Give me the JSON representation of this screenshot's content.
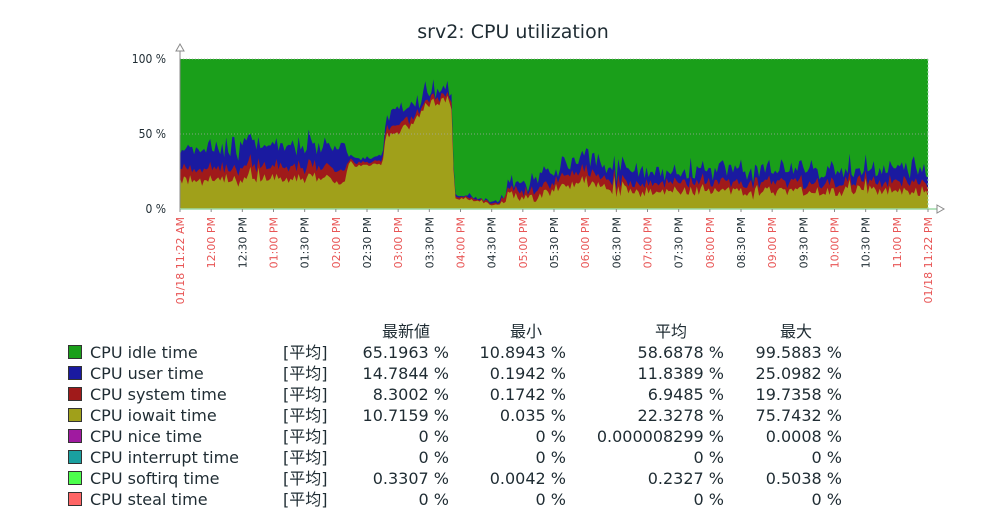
{
  "chart_data": {
    "type": "area",
    "title": "srv2: CPU utilization",
    "y_ticks": [
      "100 %",
      "50 %",
      "0 %"
    ],
    "ylim": [
      0,
      100
    ],
    "x_ticks": [
      {
        "label": "01/18 11:22 AM",
        "red": true
      },
      {
        "label": "12:00 PM",
        "red": true
      },
      {
        "label": "12:30 PM",
        "red": false
      },
      {
        "label": "01:00 PM",
        "red": true
      },
      {
        "label": "01:30 PM",
        "red": false
      },
      {
        "label": "02:00 PM",
        "red": true
      },
      {
        "label": "02:30 PM",
        "red": false
      },
      {
        "label": "03:00 PM",
        "red": true
      },
      {
        "label": "03:30 PM",
        "red": false
      },
      {
        "label": "04:00 PM",
        "red": true
      },
      {
        "label": "04:30 PM",
        "red": false
      },
      {
        "label": "05:00 PM",
        "red": true
      },
      {
        "label": "05:30 PM",
        "red": false
      },
      {
        "label": "06:00 PM",
        "red": true
      },
      {
        "label": "06:30 PM",
        "red": false
      },
      {
        "label": "07:00 PM",
        "red": true
      },
      {
        "label": "07:30 PM",
        "red": false
      },
      {
        "label": "08:00 PM",
        "red": true
      },
      {
        "label": "08:30 PM",
        "red": false
      },
      {
        "label": "09:00 PM",
        "red": true
      },
      {
        "label": "09:30 PM",
        "red": false
      },
      {
        "label": "10:00 PM",
        "red": true
      },
      {
        "label": "10:30 PM",
        "red": false
      },
      {
        "label": "11:00 PM",
        "red": true
      },
      {
        "label": "01/18 11:22 PM",
        "red": true
      }
    ],
    "colors": {
      "idle": "#1a9f1a",
      "user": "#1a1aa0",
      "system": "#a01a1a",
      "iowait": "#a0a01a",
      "grid": "#a8a8a8",
      "axis": "#8a8a8a",
      "axis_end": "#9bd8a6",
      "red_tick": "#e85555",
      "black_tick": "#1f2c33"
    },
    "series_profile": [
      {
        "x": 0.0,
        "iowait": 20,
        "system": 8,
        "user": 12
      },
      {
        "x": 0.5,
        "iowait": 19,
        "system": 8,
        "user": 13
      },
      {
        "x": 1.0,
        "iowait": 20,
        "system": 8,
        "user": 14
      },
      {
        "x": 1.5,
        "iowait": 21,
        "system": 8,
        "user": 15
      },
      {
        "x": 2.0,
        "iowait": 20,
        "system": 8,
        "user": 14
      },
      {
        "x": 2.5,
        "iowait": 20,
        "system": 8,
        "user": 15
      },
      {
        "x": 3.0,
        "iowait": 21,
        "system": 8,
        "user": 15
      },
      {
        "x": 3.5,
        "iowait": 20,
        "system": 8,
        "user": 15
      },
      {
        "x": 4.0,
        "iowait": 20,
        "system": 8,
        "user": 14
      },
      {
        "x": 4.5,
        "iowait": 22,
        "system": 8,
        "user": 15
      },
      {
        "x": 5.0,
        "iowait": 20,
        "system": 8,
        "user": 15
      },
      {
        "x": 5.3,
        "iowait": 19,
        "system": 8,
        "user": 15
      },
      {
        "x": 5.4,
        "iowait": 30,
        "system": 2,
        "user": 3
      },
      {
        "x": 6.0,
        "iowait": 29,
        "system": 2,
        "user": 3
      },
      {
        "x": 6.5,
        "iowait": 30,
        "system": 2,
        "user": 3
      },
      {
        "x": 6.6,
        "iowait": 51,
        "system": 6,
        "user": 10
      },
      {
        "x": 7.0,
        "iowait": 50,
        "system": 6,
        "user": 10
      },
      {
        "x": 7.3,
        "iowait": 54,
        "system": 5,
        "user": 9
      },
      {
        "x": 7.6,
        "iowait": 62,
        "system": 4,
        "user": 7
      },
      {
        "x": 8.0,
        "iowait": 70,
        "system": 3,
        "user": 5
      },
      {
        "x": 8.4,
        "iowait": 72,
        "system": 3,
        "user": 5
      },
      {
        "x": 8.7,
        "iowait": 73,
        "system": 3,
        "user": 4
      },
      {
        "x": 8.8,
        "iowait": 7,
        "system": 1,
        "user": 1
      },
      {
        "x": 9.2,
        "iowait": 7,
        "system": 1,
        "user": 1
      },
      {
        "x": 9.6,
        "iowait": 5,
        "system": 1,
        "user": 1
      },
      {
        "x": 10.2,
        "iowait": 2,
        "system": 1,
        "user": 1
      },
      {
        "x": 10.4,
        "iowait": 8,
        "system": 3,
        "user": 3
      },
      {
        "x": 10.8,
        "iowait": 9,
        "system": 4,
        "user": 4
      },
      {
        "x": 11.2,
        "iowait": 6,
        "system": 4,
        "user": 6
      },
      {
        "x": 11.6,
        "iowait": 10,
        "system": 6,
        "user": 7
      },
      {
        "x": 12.0,
        "iowait": 13,
        "system": 6,
        "user": 8
      },
      {
        "x": 12.4,
        "iowait": 16,
        "system": 7,
        "user": 8
      },
      {
        "x": 12.8,
        "iowait": 17,
        "system": 7,
        "user": 8
      },
      {
        "x": 13.2,
        "iowait": 18,
        "system": 7,
        "user": 9
      },
      {
        "x": 13.6,
        "iowait": 14,
        "system": 7,
        "user": 9
      },
      {
        "x": 14.0,
        "iowait": 12,
        "system": 6,
        "user": 8
      }
    ],
    "series": [
      {
        "name": "CPU idle time",
        "color": "#1a9f1a",
        "func": "[平均]",
        "last": "65.1963 %",
        "min": "10.8943 %",
        "avg": "58.6878 %",
        "max": "99.5883 %"
      },
      {
        "name": "CPU user time",
        "color": "#1a1aa0",
        "func": "[平均]",
        "last": "14.7844 %",
        "min": "0.1942 %",
        "avg": "11.8389 %",
        "max": "25.0982 %"
      },
      {
        "name": "CPU system time",
        "color": "#a01a1a",
        "func": "[平均]",
        "last": "8.3002 %",
        "min": "0.1742 %",
        "avg": "6.9485 %",
        "max": "19.7358 %"
      },
      {
        "name": "CPU iowait time",
        "color": "#a0a01a",
        "func": "[平均]",
        "last": "10.7159 %",
        "min": "0.035 %",
        "avg": "22.3278 %",
        "max": "75.7432 %"
      },
      {
        "name": "CPU nice time",
        "color": "#a01aa0",
        "func": "[平均]",
        "last": "0 %",
        "min": "0 %",
        "avg": "0.000008299 %",
        "max": "0.0008 %"
      },
      {
        "name": "CPU interrupt time",
        "color": "#1aa0a0",
        "func": "[平均]",
        "last": "0 %",
        "min": "0 %",
        "avg": "0 %",
        "max": "0 %"
      },
      {
        "name": "CPU softirq time",
        "color": "#4cff4c",
        "func": "[平均]",
        "last": "0.3307 %",
        "min": "0.0042 %",
        "avg": "0.2327 %",
        "max": "0.5038 %"
      },
      {
        "name": "CPU steal time",
        "color": "#ff6666",
        "func": "[平均]",
        "last": "0 %",
        "min": "0 %",
        "avg": "0 %",
        "max": "0 %"
      }
    ]
  },
  "legend": {
    "headers": {
      "last": "最新値",
      "min": "最小",
      "avg": "平均",
      "max": "最大"
    }
  }
}
